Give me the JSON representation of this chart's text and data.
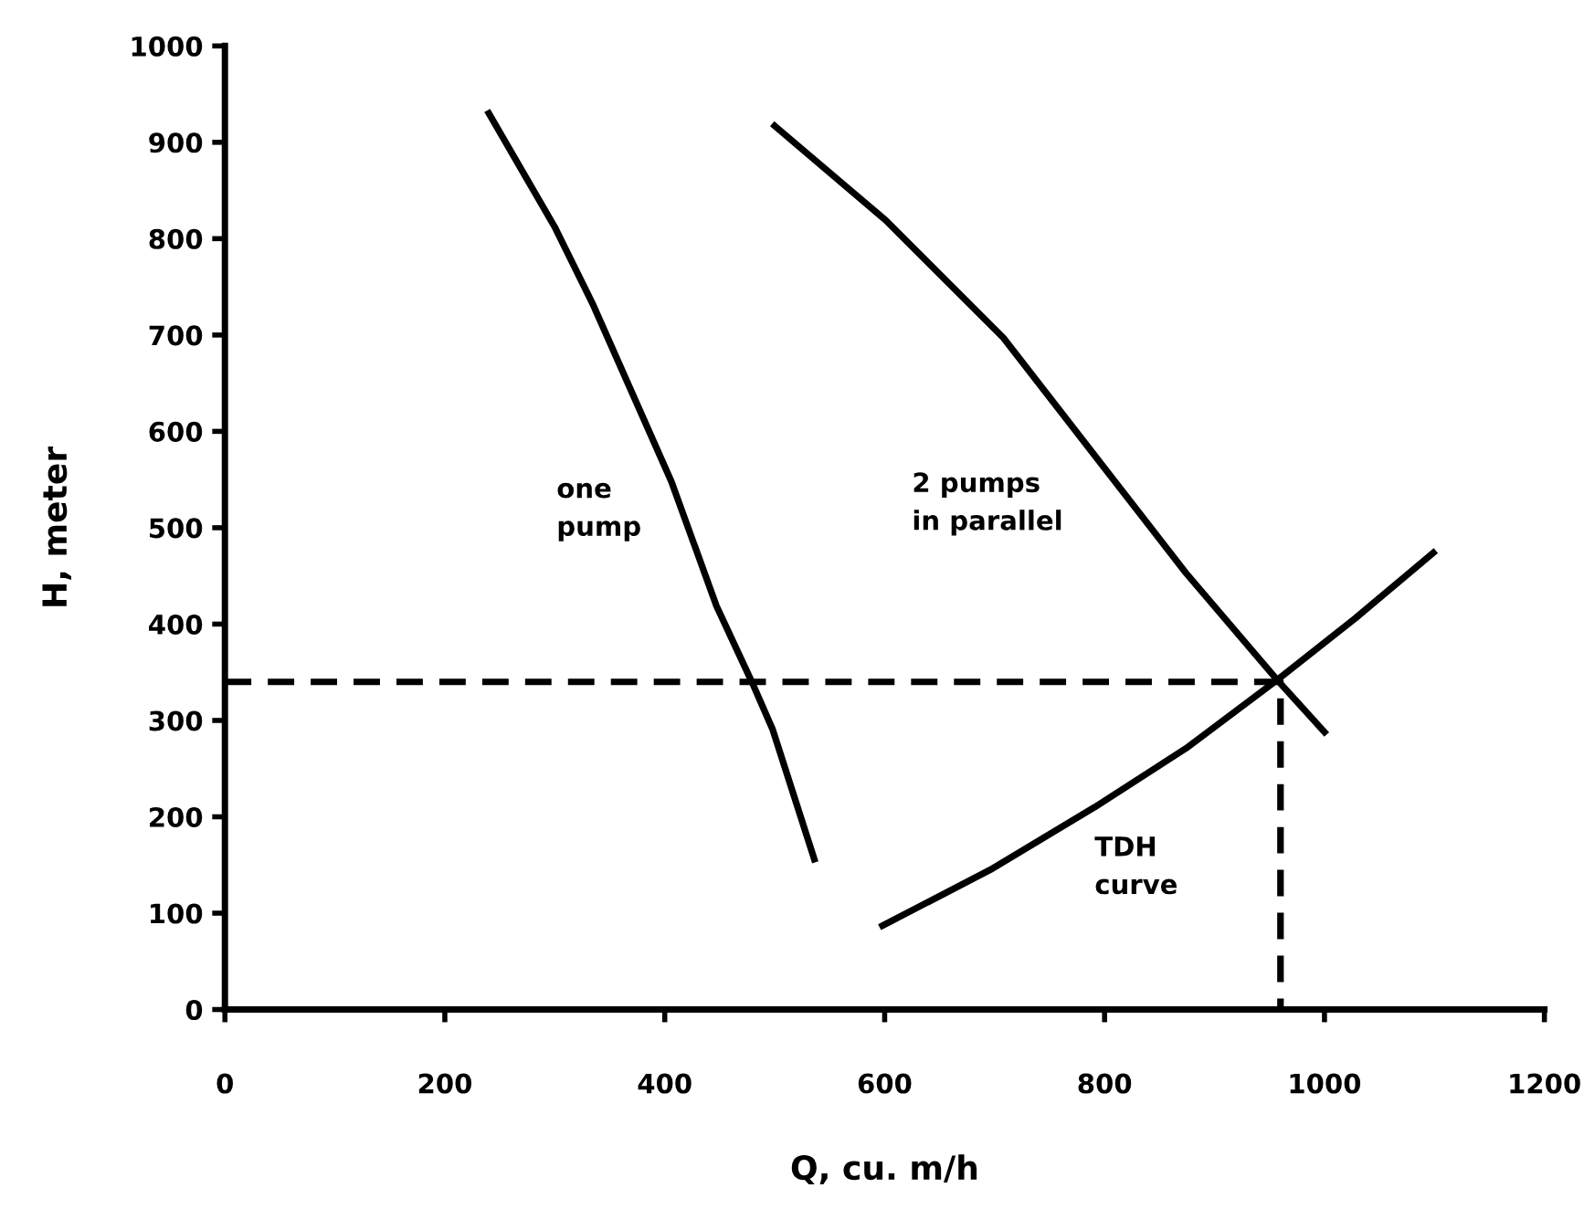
{
  "chart_data": {
    "type": "line",
    "xlabel": "Q, cu. m/h",
    "ylabel": "H, meter",
    "xlim": [
      0,
      1200
    ],
    "xticks": [
      0,
      200,
      400,
      600,
      800,
      1000,
      1200
    ],
    "ylim": [
      0,
      1000
    ],
    "yticks": [
      0,
      100,
      200,
      300,
      400,
      500,
      600,
      700,
      800,
      900,
      1000
    ],
    "grid": false,
    "legend": false,
    "marker": "none",
    "series": [
      {
        "name": "one\npump",
        "color": "#000000",
        "line_style": "solid",
        "x": [
          240,
          300,
          335,
          406,
          447,
          480,
          498,
          536
        ],
        "values": [
          930,
          812,
          731,
          548,
          419,
          338,
          291,
          156
        ]
      },
      {
        "name": "2 pumps\nin parallel",
        "color": "#000000",
        "line_style": "solid",
        "x": [
          500,
          601,
          708,
          791,
          874,
          957,
          1000
        ],
        "values": [
          917,
          819,
          697,
          575,
          453,
          342,
          288
        ]
      },
      {
        "name": "TDH\ncurve",
        "color": "#000000",
        "line_style": "solid",
        "x": [
          598,
          696,
          791,
          874,
          957,
          1028,
          1099
        ],
        "values": [
          87,
          145,
          210,
          271,
          342,
          406,
          474
        ]
      },
      {
        "color": "#000000",
        "line_style": "dashed",
        "x": [
          0,
          960,
          960
        ],
        "values": [
          340,
          340,
          0
        ]
      }
    ]
  }
}
